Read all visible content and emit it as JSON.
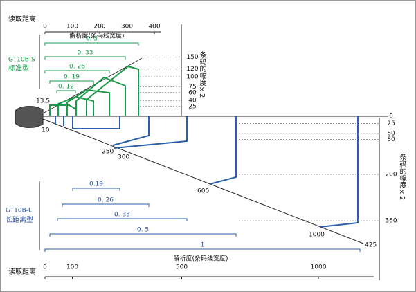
{
  "top_axis": {
    "title": "读取距离",
    "ticks": [
      0,
      100,
      200,
      300,
      400
    ],
    "resolution_title": "解析度(条码线宽度)"
  },
  "standard": {
    "model": "GT10B-S",
    "type": "标准型",
    "resolutions": [
      "0. 5",
      "0. 33",
      "0. 26",
      "0. 19",
      "0. 12"
    ]
  },
  "upper_width_axis": {
    "title": "条码的幅度×2",
    "ticks": [
      150,
      120,
      100,
      75,
      60,
      40,
      25
    ]
  },
  "lower_width_axis": {
    "title": "条码的幅度×2",
    "ticks": [
      0,
      25,
      60,
      80,
      200,
      360
    ]
  },
  "cone_labels": {
    "s_near": 13.5,
    "l_near": 10,
    "distances": [
      250,
      300,
      600,
      1000,
      425
    ]
  },
  "long_range": {
    "model": "GT10B-L",
    "type": "长距离型",
    "resolutions": [
      "0.19",
      "0. 26",
      "0. 33",
      "0. 5",
      "1"
    ]
  },
  "bottom_axis": {
    "title": "读取距离",
    "ticks": [
      0,
      100,
      500,
      1000
    ],
    "resolution_title": "解析度(条码线宽度)"
  }
}
